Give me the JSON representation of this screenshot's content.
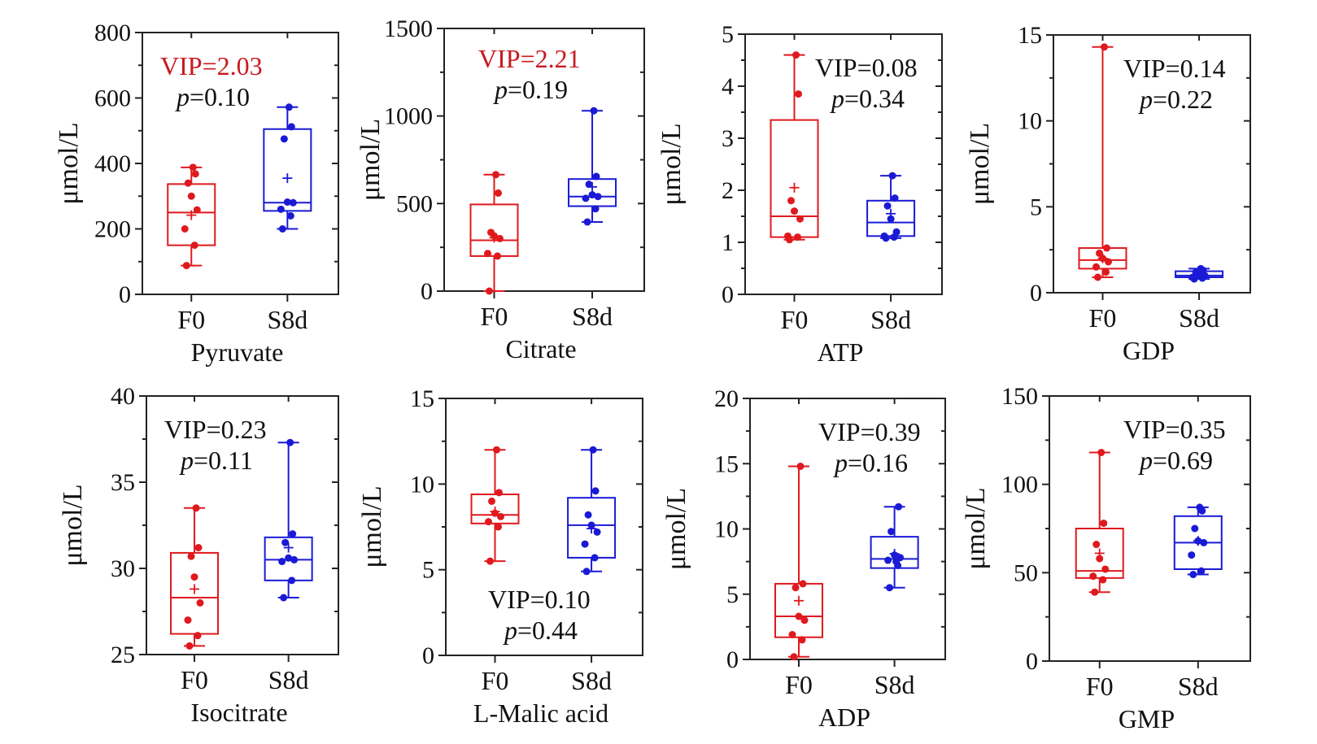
{
  "figure": {
    "colors": {
      "F0": "#e0191e",
      "S8d": "#1a1ad6",
      "axis": "#222222",
      "vip_highlight": "#c8191e"
    }
  },
  "chart_data": [
    {
      "type": "boxplot",
      "title": "Pyruvate",
      "ylabel": "μmol/L",
      "ylim": [
        0,
        800
      ],
      "yticks": [
        0,
        200,
        400,
        600,
        800
      ],
      "categories": [
        "F0",
        "S8d"
      ],
      "vip": "VIP=2.03",
      "vip_highlight": true,
      "p": "=0.10",
      "annotation_pos": "top-left",
      "series": [
        {
          "name": "F0",
          "min": 88,
          "q1": 150,
          "median": 250,
          "q3": 337,
          "max": 388,
          "mean": 242,
          "points": [
            88,
            150,
            200,
            258,
            300,
            340,
            368,
            388
          ]
        },
        {
          "name": "S8d",
          "min": 200,
          "q1": 255,
          "median": 280,
          "q3": 505,
          "max": 572,
          "mean": 355,
          "points": [
            200,
            240,
            260,
            280,
            282,
            475,
            512,
            572
          ]
        }
      ]
    },
    {
      "type": "boxplot",
      "title": "Citrate",
      "ylabel": "μmol/L",
      "ylim": [
        0,
        1500
      ],
      "yticks": [
        0,
        500,
        1000,
        1500
      ],
      "categories": [
        "F0",
        "S8d"
      ],
      "vip": "VIP=2.21",
      "vip_highlight": true,
      "p": "=0.19",
      "annotation_pos": "top-center",
      "series": [
        {
          "name": "F0",
          "min": 0,
          "q1": 200,
          "median": 290,
          "q3": 495,
          "max": 665,
          "mean": 305,
          "points": [
            0,
            200,
            215,
            300,
            315,
            335,
            560,
            665
          ]
        },
        {
          "name": "S8d",
          "min": 395,
          "q1": 485,
          "median": 540,
          "q3": 640,
          "max": 1030,
          "mean": 595,
          "points": [
            395,
            470,
            530,
            540,
            550,
            610,
            655,
            1030
          ]
        }
      ]
    },
    {
      "type": "boxplot",
      "title": "ATP",
      "ylabel": "μmol/L",
      "ylim": [
        0,
        5
      ],
      "yticks": [
        0,
        1,
        2,
        3,
        4,
        5
      ],
      "categories": [
        "F0",
        "S8d"
      ],
      "vip": "VIP=0.08",
      "vip_highlight": false,
      "p": "=0.34",
      "annotation_pos": "top-right",
      "series": [
        {
          "name": "F0",
          "min": 1.05,
          "q1": 1.1,
          "median": 1.5,
          "q3": 3.35,
          "max": 4.6,
          "mean": 2.05,
          "points": [
            1.05,
            1.1,
            1.12,
            1.45,
            1.6,
            1.8,
            3.85,
            4.6
          ]
        },
        {
          "name": "S8d",
          "min": 1.08,
          "q1": 1.12,
          "median": 1.38,
          "q3": 1.8,
          "max": 2.28,
          "mean": 1.55,
          "points": [
            1.08,
            1.1,
            1.12,
            1.2,
            1.45,
            1.7,
            1.85,
            2.28
          ]
        }
      ]
    },
    {
      "type": "boxplot",
      "title": "GDP",
      "ylabel": "μmol/L",
      "ylim": [
        0,
        15
      ],
      "yticks": [
        0,
        5,
        10,
        15
      ],
      "categories": [
        "F0",
        "S8d"
      ],
      "vip": "VIP=0.14",
      "vip_highlight": false,
      "p": "=0.22",
      "annotation_pos": "top-right",
      "series": [
        {
          "name": "F0",
          "min": 0.9,
          "q1": 1.4,
          "median": 1.9,
          "q3": 2.6,
          "max": 14.3,
          "mean": 2.0,
          "points": [
            0.9,
            1.2,
            1.5,
            1.8,
            2.0,
            2.3,
            2.6,
            14.3
          ]
        },
        {
          "name": "S8d",
          "min": 0.8,
          "q1": 0.9,
          "median": 1.0,
          "q3": 1.25,
          "max": 1.4,
          "mean": 1.05,
          "points": [
            0.8,
            0.85,
            0.9,
            1.0,
            1.1,
            1.2,
            1.3,
            1.4
          ]
        }
      ]
    },
    {
      "type": "boxplot",
      "title": "Isocitrate",
      "ylabel": "μmol/L",
      "ylim": [
        25,
        40
      ],
      "yticks": [
        25,
        30,
        35,
        40
      ],
      "categories": [
        "F0",
        "S8d"
      ],
      "vip": "VIP=0.23",
      "vip_highlight": false,
      "p": "=0.11",
      "annotation_pos": "top-left",
      "series": [
        {
          "name": "F0",
          "min": 25.5,
          "q1": 26.2,
          "median": 28.3,
          "q3": 30.9,
          "max": 33.5,
          "mean": 28.8,
          "points": [
            25.5,
            26.1,
            27.0,
            28.0,
            29.5,
            30.7,
            31.2,
            33.5
          ]
        },
        {
          "name": "S8d",
          "min": 28.3,
          "q1": 29.3,
          "median": 30.5,
          "q3": 31.8,
          "max": 37.3,
          "mean": 31.2,
          "points": [
            28.3,
            29.3,
            30.4,
            30.5,
            30.6,
            31.5,
            32.0,
            37.3
          ]
        }
      ]
    },
    {
      "type": "boxplot",
      "title": "L-Malic acid",
      "ylabel": "μmol/L",
      "ylim": [
        0,
        15
      ],
      "yticks": [
        0,
        5,
        10,
        15
      ],
      "categories": [
        "F0",
        "S8d"
      ],
      "vip": "VIP=0.10",
      "vip_highlight": false,
      "p": "=0.44",
      "annotation_pos": "bottom-center",
      "series": [
        {
          "name": "F0",
          "min": 5.5,
          "q1": 7.7,
          "median": 8.2,
          "q3": 9.4,
          "max": 12.0,
          "mean": 8.4,
          "points": [
            5.5,
            7.5,
            7.8,
            8.1,
            8.3,
            9.0,
            9.5,
            12.0
          ]
        },
        {
          "name": "S8d",
          "min": 4.9,
          "q1": 5.7,
          "median": 7.6,
          "q3": 9.2,
          "max": 12.0,
          "mean": 7.4,
          "points": [
            4.9,
            5.7,
            6.5,
            7.2,
            7.6,
            8.2,
            9.6,
            12.0
          ]
        }
      ]
    },
    {
      "type": "boxplot",
      "title": "ADP",
      "ylabel": "μmol/L",
      "ylim": [
        0,
        20
      ],
      "yticks": [
        0,
        5,
        10,
        15,
        20
      ],
      "categories": [
        "F0",
        "S8d"
      ],
      "vip": "VIP=0.39",
      "vip_highlight": false,
      "p": "=0.16",
      "annotation_pos": "top-right",
      "series": [
        {
          "name": "F0",
          "min": 0.2,
          "q1": 1.7,
          "median": 3.3,
          "q3": 5.8,
          "max": 14.8,
          "mean": 4.5,
          "points": [
            0.2,
            1.5,
            1.9,
            3.0,
            3.3,
            5.5,
            5.8,
            14.8
          ]
        },
        {
          "name": "S8d",
          "min": 5.5,
          "q1": 7.0,
          "median": 7.7,
          "q3": 9.4,
          "max": 11.7,
          "mean": 8.1,
          "points": [
            5.5,
            7.2,
            7.6,
            7.8,
            8.0,
            9.8,
            11.7,
            7.5
          ]
        }
      ]
    },
    {
      "type": "boxplot",
      "title": "GMP",
      "ylabel": "μmol/L",
      "ylim": [
        0,
        150
      ],
      "yticks": [
        0,
        50,
        100,
        150
      ],
      "categories": [
        "F0",
        "S8d"
      ],
      "vip": "VIP=0.35",
      "vip_highlight": false,
      "p": "=0.69",
      "annotation_pos": "top-right",
      "series": [
        {
          "name": "F0",
          "min": 39,
          "q1": 47,
          "median": 51,
          "q3": 75,
          "max": 118,
          "mean": 61,
          "points": [
            39,
            46,
            48,
            52,
            58,
            66,
            78,
            118
          ]
        },
        {
          "name": "S8d",
          "min": 49,
          "q1": 52,
          "median": 67,
          "q3": 82,
          "max": 87,
          "mean": 68,
          "points": [
            49,
            51,
            60,
            67,
            68,
            75,
            85,
            87
          ]
        }
      ]
    }
  ]
}
